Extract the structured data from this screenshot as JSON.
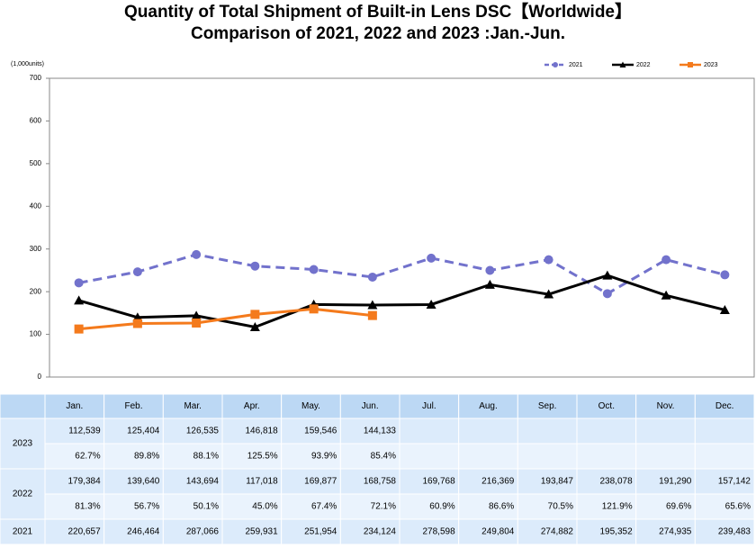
{
  "chart_data": {
    "type": "line",
    "title": "Quantity of Total Shipment of Built-in Lens DSC【Worldwide】",
    "subtitle": "Comparison of 2021, 2022 and 2023 :Jan.-Jun.",
    "y_label": "(1,000units)",
    "categories": [
      "Jan.",
      "Feb.",
      "Mar.",
      "Apr.",
      "May.",
      "Jun.",
      "Jul.",
      "Aug.",
      "Sep.",
      "Oct.",
      "Nov.",
      "Dec."
    ],
    "ylim": [
      0,
      700
    ],
    "yticks": [
      0,
      100,
      200,
      300,
      400,
      500,
      600,
      700
    ],
    "legend": "top-right",
    "series": [
      {
        "name": "2021",
        "color": "#7272cc",
        "line_style": "dashed",
        "marker": "circle",
        "values": [
          220.657,
          246.464,
          287.066,
          259.931,
          251.954,
          234.124,
          278.598,
          249.804,
          274.882,
          195.352,
          274.935,
          239.483
        ],
        "value_labels": [
          "220,657",
          "246,464",
          "287,066",
          "259,931",
          "251,954",
          "234,124",
          "278,598",
          "249,804",
          "274,882",
          "195,352",
          "274,935",
          "239,483"
        ]
      },
      {
        "name": "2022",
        "color": "#000000",
        "line_style": "solid",
        "marker": "triangle",
        "values": [
          179.384,
          139.64,
          143.694,
          117.018,
          169.877,
          168.758,
          169.768,
          216.369,
          193.847,
          238.078,
          191.29,
          157.142
        ],
        "value_labels": [
          "179,384",
          "139,640",
          "143,694",
          "117,018",
          "169,877",
          "168,758",
          "169,768",
          "216,369",
          "193,847",
          "238,078",
          "191,290",
          "157,142"
        ],
        "ratio_labels": [
          "81.3%",
          "56.7%",
          "50.1%",
          "45.0%",
          "67.4%",
          "72.1%",
          "60.9%",
          "86.6%",
          "70.5%",
          "121.9%",
          "69.6%",
          "65.6%"
        ]
      },
      {
        "name": "2023",
        "color": "#f47a1c",
        "line_style": "solid",
        "marker": "square",
        "values": [
          112.539,
          125.404,
          126.535,
          146.818,
          159.546,
          144.133,
          null,
          null,
          null,
          null,
          null,
          null
        ],
        "value_labels": [
          "112,539",
          "125,404",
          "126,535",
          "146,818",
          "159,546",
          "144,133",
          null,
          null,
          null,
          null,
          null,
          null
        ],
        "ratio_labels": [
          "62.7%",
          "89.8%",
          "88.1%",
          "125.5%",
          "93.9%",
          "85.4%",
          null,
          null,
          null,
          null,
          null,
          null
        ]
      }
    ]
  }
}
